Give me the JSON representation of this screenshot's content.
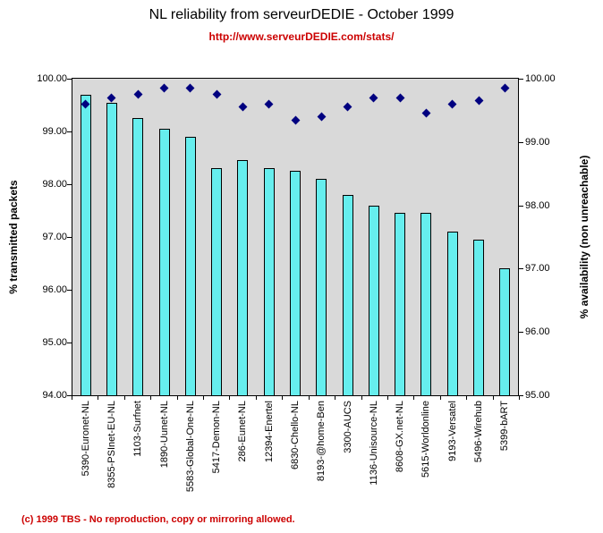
{
  "title": "NL reliability from serveurDEDIE - October 1999",
  "subtitle": "http://www.serveurDEDIE.com/stats/",
  "footer": "(c) 1999 TBS - No reproduction, copy or mirroring allowed.",
  "colors": {
    "bar_fill": "#66EEEE",
    "bar_border": "#000000",
    "diamond": "#000080",
    "plot_background": "#D9D9D9",
    "accent_red": "#CC0000"
  },
  "chart_data": {
    "type": "combo",
    "categories": [
      "5390-Euronet-NL",
      "8355-PSInet-EU-NL",
      "1103-Surfnet",
      "1890-Uunet-NL",
      "5583-Global-One-NL",
      "5417-Demon-NL",
      "286-Eunet-NL",
      "12394-Enertel",
      "6830-Chello-NL",
      "8193-@home-Ben",
      "3300-AUCS",
      "1136-Unisource-NL",
      "8608-GX.net-NL",
      "5615-Worldonline",
      "9193-Versatel",
      "5496-Wirehub",
      "5399-bART"
    ],
    "series": [
      {
        "name": "% transmitted packets",
        "type": "bar",
        "axis": "left",
        "values": [
          99.7,
          99.55,
          99.25,
          99.05,
          98.9,
          98.3,
          98.45,
          98.3,
          98.25,
          98.1,
          97.8,
          97.6,
          97.45,
          97.45,
          97.1,
          96.95,
          96.4
        ]
      },
      {
        "name": "% availability (non unreachable)",
        "type": "scatter",
        "axis": "right",
        "values": [
          99.6,
          99.7,
          99.75,
          99.85,
          99.85,
          99.75,
          99.55,
          99.6,
          99.35,
          99.4,
          99.55,
          99.7,
          99.7,
          99.45,
          99.6,
          99.65,
          99.85
        ]
      }
    ],
    "left_axis": {
      "label": "% transmitted packets",
      "min": 94,
      "max": 100,
      "ticks": [
        "94.00",
        "95.00",
        "96.00",
        "97.00",
        "98.00",
        "99.00",
        "100.00"
      ]
    },
    "right_axis": {
      "label": "% availability (non unreachable)",
      "min": 95,
      "max": 100,
      "ticks": [
        "95.00",
        "96.00",
        "97.00",
        "98.00",
        "99.00",
        "100.00"
      ]
    },
    "grid": false,
    "legend": "none"
  }
}
